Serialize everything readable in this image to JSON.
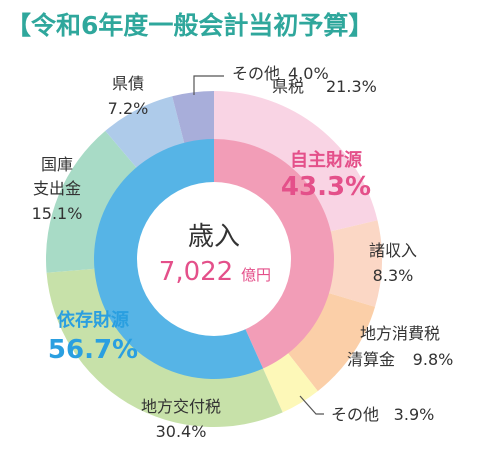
{
  "title": "【令和6年度一般会計当初予算】",
  "chart_data": {
    "type": "pie",
    "center": {
      "label": "歳入",
      "value": "7,022",
      "unit": "億円"
    },
    "inner_ring": [
      {
        "name": "自主財源",
        "value": 43.3,
        "display": "43.3%",
        "color": "#f29db7"
      },
      {
        "name": "依存財源",
        "value": 56.7,
        "display": "56.7%",
        "color": "#56b4e6"
      }
    ],
    "outer_ring": [
      {
        "name": "県税",
        "value": 21.3,
        "display": "21.3%",
        "color": "#f9d4e4"
      },
      {
        "name": "諸収入",
        "value": 8.3,
        "display": "8.3%",
        "color": "#fbd7c5"
      },
      {
        "name": "地方消費税清算金",
        "value": 9.8,
        "display": "9.8%",
        "color": "#fbcfa8"
      },
      {
        "name": "その他",
        "value": 3.9,
        "display": "3.9%",
        "color": "#fdf8b8"
      },
      {
        "name": "地方交付税",
        "value": 30.4,
        "display": "30.4%",
        "color": "#c7e1a9"
      },
      {
        "name": "国庫支出金",
        "value": 15.1,
        "display": "15.1%",
        "color": "#a8dbc6"
      },
      {
        "name": "県債",
        "value": 7.2,
        "display": "7.2%",
        "color": "#aecbea"
      },
      {
        "name": "その他",
        "value": 4.0,
        "display": "4.0%",
        "color": "#a8aeda"
      }
    ],
    "labels": {
      "kenzei": "県税",
      "kenzei_pct": "21.3%",
      "shotoku": "諸収入",
      "shotoku_pct": "8.3%",
      "chiho_shohi_1": "地方消費税",
      "chiho_shohi_2": "清算金",
      "chiho_shohi_pct": "9.8%",
      "sonota_bottom": "その他",
      "sonota_bottom_pct": "3.9%",
      "kofuzei": "地方交付税",
      "kofuzei_pct": "30.4%",
      "kokko_1": "国庫",
      "kokko_2": "支出金",
      "kokko_pct": "15.1%",
      "kensai": "県債",
      "kensai_pct": "7.2%",
      "sonota_top": "その他",
      "sonota_top_pct": "4.0%",
      "jishu": "自主財源",
      "jishu_pct": "43.3%",
      "izon": "依存財源",
      "izon_pct": "56.7%"
    }
  }
}
